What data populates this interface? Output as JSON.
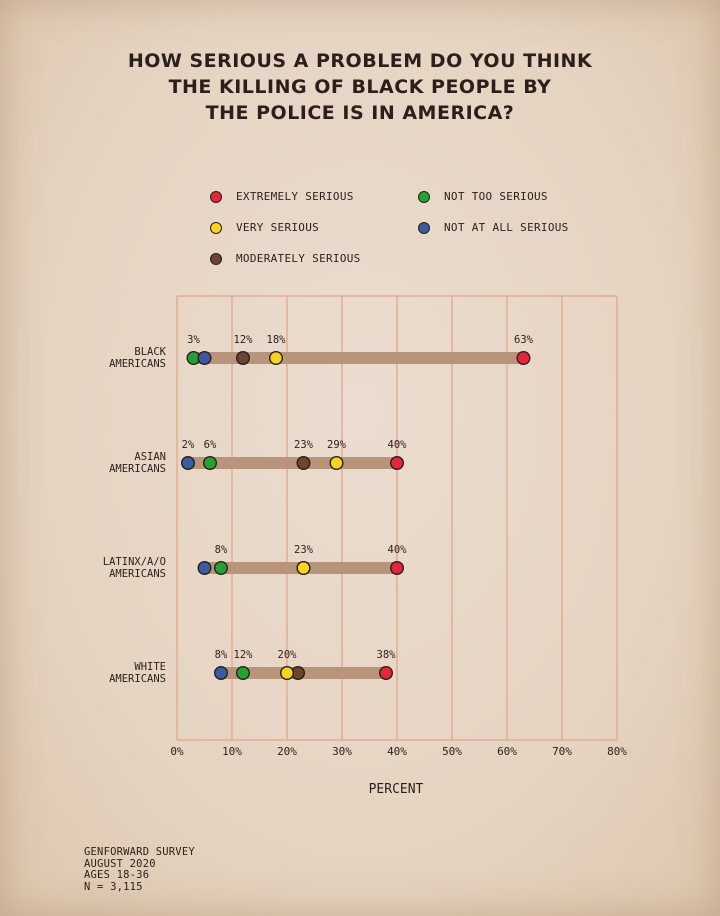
{
  "chart_data": {
    "type": "dot-range",
    "title_lines": [
      "HOW SERIOUS A PROBLEM DO YOU THINK",
      "THE KILLING OF BLACK PEOPLE BY",
      "THE POLICE IS IN AMERICA?"
    ],
    "xlabel": "PERCENT",
    "xlim": [
      0,
      80
    ],
    "x_ticks": [
      0,
      10,
      20,
      30,
      40,
      50,
      60,
      70,
      80
    ],
    "x_tick_labels": [
      "0%",
      "10%",
      "20%",
      "30%",
      "40%",
      "50%",
      "60%",
      "70%",
      "80%"
    ],
    "grid": true,
    "legend": [
      {
        "name": "EXTREMELY SERIOUS",
        "color": "#e3263a"
      },
      {
        "name": "VERY SERIOUS",
        "color": "#f6d41f"
      },
      {
        "name": "MODERATELY SERIOUS",
        "color": "#6b4530"
      },
      {
        "name": "NOT TOO SERIOUS",
        "color": "#24a135"
      },
      {
        "name": "NOT AT ALL SERIOUS",
        "color": "#3b5aa0"
      }
    ],
    "groups": [
      {
        "label_lines": [
          "BLACK",
          "AMERICANS"
        ],
        "values": {
          "extremely": 63,
          "very": 18,
          "moderately": 12,
          "not_too": 3,
          "not_at_all": 5
        },
        "printed_labels": [
          {
            "text": "3%",
            "value": 3
          },
          {
            "text": "12%",
            "value": 12
          },
          {
            "text": "18%",
            "value": 18
          },
          {
            "text": "63%",
            "value": 63
          }
        ]
      },
      {
        "label_lines": [
          "ASIAN",
          "AMERICANS"
        ],
        "values": {
          "extremely": 40,
          "very": 29,
          "moderately": 23,
          "not_too": 6,
          "not_at_all": 2
        },
        "printed_labels": [
          {
            "text": "2%",
            "value": 2
          },
          {
            "text": "6%",
            "value": 6
          },
          {
            "text": "23%",
            "value": 23
          },
          {
            "text": "29%",
            "value": 29
          },
          {
            "text": "40%",
            "value": 40
          }
        ]
      },
      {
        "label_lines": [
          "LATINX/A/O",
          "AMERICANS"
        ],
        "values": {
          "extremely": 40,
          "very": 23,
          "moderately": 23,
          "not_too": 8,
          "not_at_all": 5
        },
        "printed_labels": [
          {
            "text": "8%",
            "value": 8
          },
          {
            "text": "23%",
            "value": 23
          },
          {
            "text": "40%",
            "value": 40
          }
        ]
      },
      {
        "label_lines": [
          "WHITE",
          "AMERICANS"
        ],
        "values": {
          "extremely": 38,
          "very": 20,
          "moderately": 22,
          "not_too": 12,
          "not_at_all": 8
        },
        "printed_labels": [
          {
            "text": "8%",
            "value": 8
          },
          {
            "text": "12%",
            "value": 12
          },
          {
            "text": "20%",
            "value": 20
          },
          {
            "text": "38%",
            "value": 38
          }
        ]
      }
    ]
  },
  "footer": [
    "GENFORWARD SURVEY",
    "AUGUST 2020",
    "AGES 18-36",
    "N = 3,115"
  ]
}
